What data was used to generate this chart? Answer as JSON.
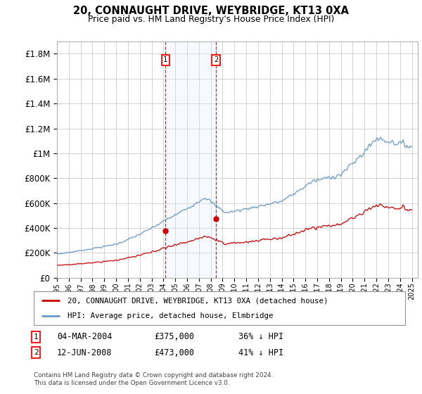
{
  "title": "20, CONNAUGHT DRIVE, WEYBRIDGE, KT13 0XA",
  "subtitle": "Price paid vs. HM Land Registry's House Price Index (HPI)",
  "ylim": [
    0,
    1900000
  ],
  "yticks": [
    0,
    200000,
    400000,
    600000,
    800000,
    1000000,
    1200000,
    1400000,
    1600000,
    1800000
  ],
  "ytick_labels": [
    "£0",
    "£200K",
    "£400K",
    "£600K",
    "£800K",
    "£1M",
    "£1.2M",
    "£1.4M",
    "£1.6M",
    "£1.8M"
  ],
  "hpi_color": "#6699cc",
  "price_color": "#cc0000",
  "shade_color": "#ddeeff",
  "transaction_1_date": 2004.17,
  "transaction_1_price": 375000,
  "transaction_2_date": 2008.45,
  "transaction_2_price": 473000,
  "legend_line1": "20, CONNAUGHT DRIVE, WEYBRIDGE, KT13 0XA (detached house)",
  "legend_line2": "HPI: Average price, detached house, Elmbridge",
  "table_row1": [
    "1",
    "04-MAR-2004",
    "£375,000",
    "36% ↓ HPI"
  ],
  "table_row2": [
    "2",
    "12-JUN-2008",
    "£473,000",
    "41% ↓ HPI"
  ],
  "footer": "Contains HM Land Registry data © Crown copyright and database right 2024.\nThis data is licensed under the Open Government Licence v3.0.",
  "background_color": "#ffffff",
  "grid_color": "#cccccc"
}
